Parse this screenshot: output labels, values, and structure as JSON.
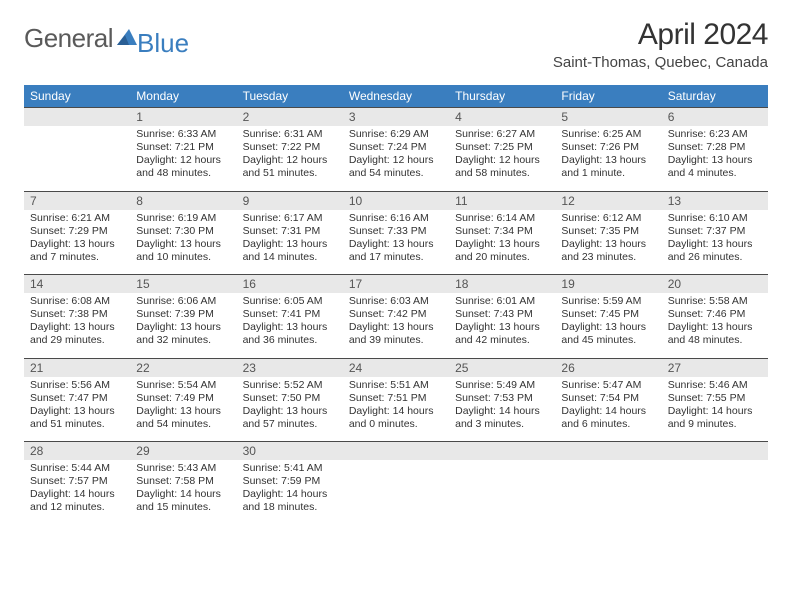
{
  "logo": {
    "general": "General",
    "blue": "Blue"
  },
  "title": "April 2024",
  "location": "Saint-Thomas, Quebec, Canada",
  "dayHeaders": [
    "Sunday",
    "Monday",
    "Tuesday",
    "Wednesday",
    "Thursday",
    "Friday",
    "Saturday"
  ],
  "colors": {
    "header_bg": "#3a7ebf",
    "header_text": "#ffffff",
    "daynum_bg": "#e8e8e8",
    "daynum_border": "#4a4a4a",
    "body_text": "#333333",
    "logo_gray": "#5a5a5a",
    "logo_blue": "#3a7ebf",
    "background": "#ffffff"
  },
  "typography": {
    "title_fontsize": 30,
    "location_fontsize": 15,
    "header_fontsize": 12,
    "detail_fontsize": 10.5
  },
  "weeks": [
    [
      {
        "num": "",
        "sunrise": "",
        "sunset": "",
        "daylight": ""
      },
      {
        "num": "1",
        "sunrise": "Sunrise: 6:33 AM",
        "sunset": "Sunset: 7:21 PM",
        "daylight": "Daylight: 12 hours and 48 minutes."
      },
      {
        "num": "2",
        "sunrise": "Sunrise: 6:31 AM",
        "sunset": "Sunset: 7:22 PM",
        "daylight": "Daylight: 12 hours and 51 minutes."
      },
      {
        "num": "3",
        "sunrise": "Sunrise: 6:29 AM",
        "sunset": "Sunset: 7:24 PM",
        "daylight": "Daylight: 12 hours and 54 minutes."
      },
      {
        "num": "4",
        "sunrise": "Sunrise: 6:27 AM",
        "sunset": "Sunset: 7:25 PM",
        "daylight": "Daylight: 12 hours and 58 minutes."
      },
      {
        "num": "5",
        "sunrise": "Sunrise: 6:25 AM",
        "sunset": "Sunset: 7:26 PM",
        "daylight": "Daylight: 13 hours and 1 minute."
      },
      {
        "num": "6",
        "sunrise": "Sunrise: 6:23 AM",
        "sunset": "Sunset: 7:28 PM",
        "daylight": "Daylight: 13 hours and 4 minutes."
      }
    ],
    [
      {
        "num": "7",
        "sunrise": "Sunrise: 6:21 AM",
        "sunset": "Sunset: 7:29 PM",
        "daylight": "Daylight: 13 hours and 7 minutes."
      },
      {
        "num": "8",
        "sunrise": "Sunrise: 6:19 AM",
        "sunset": "Sunset: 7:30 PM",
        "daylight": "Daylight: 13 hours and 10 minutes."
      },
      {
        "num": "9",
        "sunrise": "Sunrise: 6:17 AM",
        "sunset": "Sunset: 7:31 PM",
        "daylight": "Daylight: 13 hours and 14 minutes."
      },
      {
        "num": "10",
        "sunrise": "Sunrise: 6:16 AM",
        "sunset": "Sunset: 7:33 PM",
        "daylight": "Daylight: 13 hours and 17 minutes."
      },
      {
        "num": "11",
        "sunrise": "Sunrise: 6:14 AM",
        "sunset": "Sunset: 7:34 PM",
        "daylight": "Daylight: 13 hours and 20 minutes."
      },
      {
        "num": "12",
        "sunrise": "Sunrise: 6:12 AM",
        "sunset": "Sunset: 7:35 PM",
        "daylight": "Daylight: 13 hours and 23 minutes."
      },
      {
        "num": "13",
        "sunrise": "Sunrise: 6:10 AM",
        "sunset": "Sunset: 7:37 PM",
        "daylight": "Daylight: 13 hours and 26 minutes."
      }
    ],
    [
      {
        "num": "14",
        "sunrise": "Sunrise: 6:08 AM",
        "sunset": "Sunset: 7:38 PM",
        "daylight": "Daylight: 13 hours and 29 minutes."
      },
      {
        "num": "15",
        "sunrise": "Sunrise: 6:06 AM",
        "sunset": "Sunset: 7:39 PM",
        "daylight": "Daylight: 13 hours and 32 minutes."
      },
      {
        "num": "16",
        "sunrise": "Sunrise: 6:05 AM",
        "sunset": "Sunset: 7:41 PM",
        "daylight": "Daylight: 13 hours and 36 minutes."
      },
      {
        "num": "17",
        "sunrise": "Sunrise: 6:03 AM",
        "sunset": "Sunset: 7:42 PM",
        "daylight": "Daylight: 13 hours and 39 minutes."
      },
      {
        "num": "18",
        "sunrise": "Sunrise: 6:01 AM",
        "sunset": "Sunset: 7:43 PM",
        "daylight": "Daylight: 13 hours and 42 minutes."
      },
      {
        "num": "19",
        "sunrise": "Sunrise: 5:59 AM",
        "sunset": "Sunset: 7:45 PM",
        "daylight": "Daylight: 13 hours and 45 minutes."
      },
      {
        "num": "20",
        "sunrise": "Sunrise: 5:58 AM",
        "sunset": "Sunset: 7:46 PM",
        "daylight": "Daylight: 13 hours and 48 minutes."
      }
    ],
    [
      {
        "num": "21",
        "sunrise": "Sunrise: 5:56 AM",
        "sunset": "Sunset: 7:47 PM",
        "daylight": "Daylight: 13 hours and 51 minutes."
      },
      {
        "num": "22",
        "sunrise": "Sunrise: 5:54 AM",
        "sunset": "Sunset: 7:49 PM",
        "daylight": "Daylight: 13 hours and 54 minutes."
      },
      {
        "num": "23",
        "sunrise": "Sunrise: 5:52 AM",
        "sunset": "Sunset: 7:50 PM",
        "daylight": "Daylight: 13 hours and 57 minutes."
      },
      {
        "num": "24",
        "sunrise": "Sunrise: 5:51 AM",
        "sunset": "Sunset: 7:51 PM",
        "daylight": "Daylight: 14 hours and 0 minutes."
      },
      {
        "num": "25",
        "sunrise": "Sunrise: 5:49 AM",
        "sunset": "Sunset: 7:53 PM",
        "daylight": "Daylight: 14 hours and 3 minutes."
      },
      {
        "num": "26",
        "sunrise": "Sunrise: 5:47 AM",
        "sunset": "Sunset: 7:54 PM",
        "daylight": "Daylight: 14 hours and 6 minutes."
      },
      {
        "num": "27",
        "sunrise": "Sunrise: 5:46 AM",
        "sunset": "Sunset: 7:55 PM",
        "daylight": "Daylight: 14 hours and 9 minutes."
      }
    ],
    [
      {
        "num": "28",
        "sunrise": "Sunrise: 5:44 AM",
        "sunset": "Sunset: 7:57 PM",
        "daylight": "Daylight: 14 hours and 12 minutes."
      },
      {
        "num": "29",
        "sunrise": "Sunrise: 5:43 AM",
        "sunset": "Sunset: 7:58 PM",
        "daylight": "Daylight: 14 hours and 15 minutes."
      },
      {
        "num": "30",
        "sunrise": "Sunrise: 5:41 AM",
        "sunset": "Sunset: 7:59 PM",
        "daylight": "Daylight: 14 hours and 18 minutes."
      },
      {
        "num": "",
        "sunrise": "",
        "sunset": "",
        "daylight": ""
      },
      {
        "num": "",
        "sunrise": "",
        "sunset": "",
        "daylight": ""
      },
      {
        "num": "",
        "sunrise": "",
        "sunset": "",
        "daylight": ""
      },
      {
        "num": "",
        "sunrise": "",
        "sunset": "",
        "daylight": ""
      }
    ]
  ]
}
